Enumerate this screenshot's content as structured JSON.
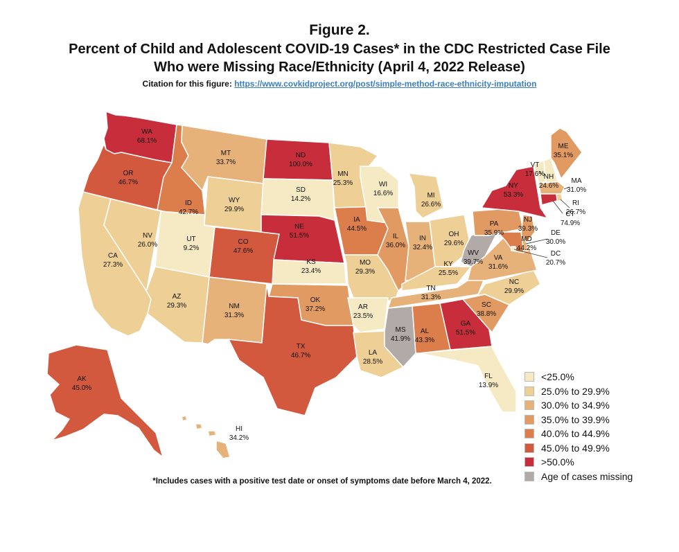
{
  "figure": {
    "title": "Figure 2.",
    "subtitle_line1": "Percent of Child and Adolescent COVID-19 Cases* in the CDC Restricted Case File",
    "subtitle_line2": "Who were Missing Race/Ethnicity (April 4, 2022 Release)",
    "citation_label": "Citation for this figure:",
    "citation_url": "https://www.covkidproject.org/post/simple-method-race-ethnicity-imputation",
    "footnote": "*Includes cases with a positive test date or onset of symptoms date before March 4, 2022."
  },
  "legend": [
    {
      "label": "<25.0%",
      "color": "#f6eac4"
    },
    {
      "label": "25.0% to 29.9%",
      "color": "#eecf96"
    },
    {
      "label": "30.0% to 34.9%",
      "color": "#e7b27a"
    },
    {
      "label": "35.0% to 39.9%",
      "color": "#e29a63"
    },
    {
      "label": "40.0% to 44.9%",
      "color": "#dc7d4c"
    },
    {
      "label": "45.0% to 49.9%",
      "color": "#d2583e"
    },
    {
      "label": ">50.0%",
      "color": "#c72d3a"
    },
    {
      "label": "Age of cases missing",
      "color": "#b2aaa6"
    }
  ],
  "states": [
    {
      "abbr": "WA",
      "value": "68.1%",
      "category": ">50.0%"
    },
    {
      "abbr": "OR",
      "value": "46.7%",
      "category": "45.0% to 49.9%"
    },
    {
      "abbr": "CA",
      "value": "27.3%",
      "category": "25.0% to 29.9%"
    },
    {
      "abbr": "ID",
      "value": "42.7%",
      "category": "40.0% to 44.9%"
    },
    {
      "abbr": "NV",
      "value": "26.0%",
      "category": "25.0% to 29.9%"
    },
    {
      "abbr": "UT",
      "value": "9.2%",
      "category": "<25.0%"
    },
    {
      "abbr": "AZ",
      "value": "29.3%",
      "category": "25.0% to 29.9%"
    },
    {
      "abbr": "MT",
      "value": "33.7%",
      "category": "30.0% to 34.9%"
    },
    {
      "abbr": "WY",
      "value": "29.9%",
      "category": "25.0% to 29.9%"
    },
    {
      "abbr": "CO",
      "value": "47.6%",
      "category": "45.0% to 49.9%"
    },
    {
      "abbr": "NM",
      "value": "31.3%",
      "category": "30.0% to 34.9%"
    },
    {
      "abbr": "ND",
      "value": "100.0%",
      "category": ">50.0%"
    },
    {
      "abbr": "SD",
      "value": "14.2%",
      "category": "<25.0%"
    },
    {
      "abbr": "NE",
      "value": "51.5%",
      "category": ">50.0%"
    },
    {
      "abbr": "KS",
      "value": "23.4%",
      "category": "<25.0%"
    },
    {
      "abbr": "OK",
      "value": "37.2%",
      "category": "35.0% to 39.9%"
    },
    {
      "abbr": "TX",
      "value": "46.7%",
      "category": "45.0% to 49.9%"
    },
    {
      "abbr": "MN",
      "value": "25.3%",
      "category": "25.0% to 29.9%"
    },
    {
      "abbr": "IA",
      "value": "44.5%",
      "category": "40.0% to 44.9%"
    },
    {
      "abbr": "MO",
      "value": "29.3%",
      "category": "25.0% to 29.9%"
    },
    {
      "abbr": "AR",
      "value": "23.5%",
      "category": "<25.0%"
    },
    {
      "abbr": "LA",
      "value": "28.5%",
      "category": "25.0% to 29.9%"
    },
    {
      "abbr": "WI",
      "value": "16.6%",
      "category": "<25.0%"
    },
    {
      "abbr": "IL",
      "value": "36.0%",
      "category": "35.0% to 39.9%"
    },
    {
      "abbr": "MI",
      "value": "26.6%",
      "category": "25.0% to 29.9%"
    },
    {
      "abbr": "IN",
      "value": "32.4%",
      "category": "30.0% to 34.9%"
    },
    {
      "abbr": "OH",
      "value": "29.6%",
      "category": "25.0% to 29.9%"
    },
    {
      "abbr": "KY",
      "value": "25.5%",
      "category": "25.0% to 29.9%"
    },
    {
      "abbr": "TN",
      "value": "31.3%",
      "category": "30.0% to 34.9%"
    },
    {
      "abbr": "MS",
      "value": "41.9%",
      "category": "Age of cases missing"
    },
    {
      "abbr": "AL",
      "value": "43.3%",
      "category": "40.0% to 44.9%"
    },
    {
      "abbr": "GA",
      "value": "51.5%",
      "category": ">50.0%"
    },
    {
      "abbr": "FL",
      "value": "13.9%",
      "category": "<25.0%"
    },
    {
      "abbr": "SC",
      "value": "38.8%",
      "category": "35.0% to 39.9%"
    },
    {
      "abbr": "NC",
      "value": "29.9%",
      "category": "25.0% to 29.9%"
    },
    {
      "abbr": "VA",
      "value": "31.6%",
      "category": "30.0% to 34.9%"
    },
    {
      "abbr": "WV",
      "value": "39.7%",
      "category": "Age of cases missing"
    },
    {
      "abbr": "PA",
      "value": "35.9%",
      "category": "35.0% to 39.9%"
    },
    {
      "abbr": "NY",
      "value": "53.3%",
      "category": ">50.0%"
    },
    {
      "abbr": "VT",
      "value": "17.6%",
      "category": "<25.0%"
    },
    {
      "abbr": "NH",
      "value": "24.6%",
      "category": "<25.0%"
    },
    {
      "abbr": "ME",
      "value": "35.1%",
      "category": "35.0% to 39.9%"
    },
    {
      "abbr": "MA",
      "value": "31.0%",
      "category": "30.0% to 34.9%"
    },
    {
      "abbr": "RI",
      "value": "26.7%",
      "category": "25.0% to 29.9%"
    },
    {
      "abbr": "CT",
      "value": "74.9%",
      "category": ">50.0%"
    },
    {
      "abbr": "NJ",
      "value": "39.3%",
      "category": "35.0% to 39.9%"
    },
    {
      "abbr": "DE",
      "value": "30.0%",
      "category": "30.0% to 34.9%"
    },
    {
      "abbr": "MD",
      "value": "44.2%",
      "category": "40.0% to 44.9%"
    },
    {
      "abbr": "DC",
      "value": "20.7%",
      "category": "<25.0%"
    },
    {
      "abbr": "AK",
      "value": "45.0%",
      "category": "45.0% to 49.9%"
    },
    {
      "abbr": "HI",
      "value": "34.2%",
      "category": "30.0% to 34.9%"
    }
  ]
}
